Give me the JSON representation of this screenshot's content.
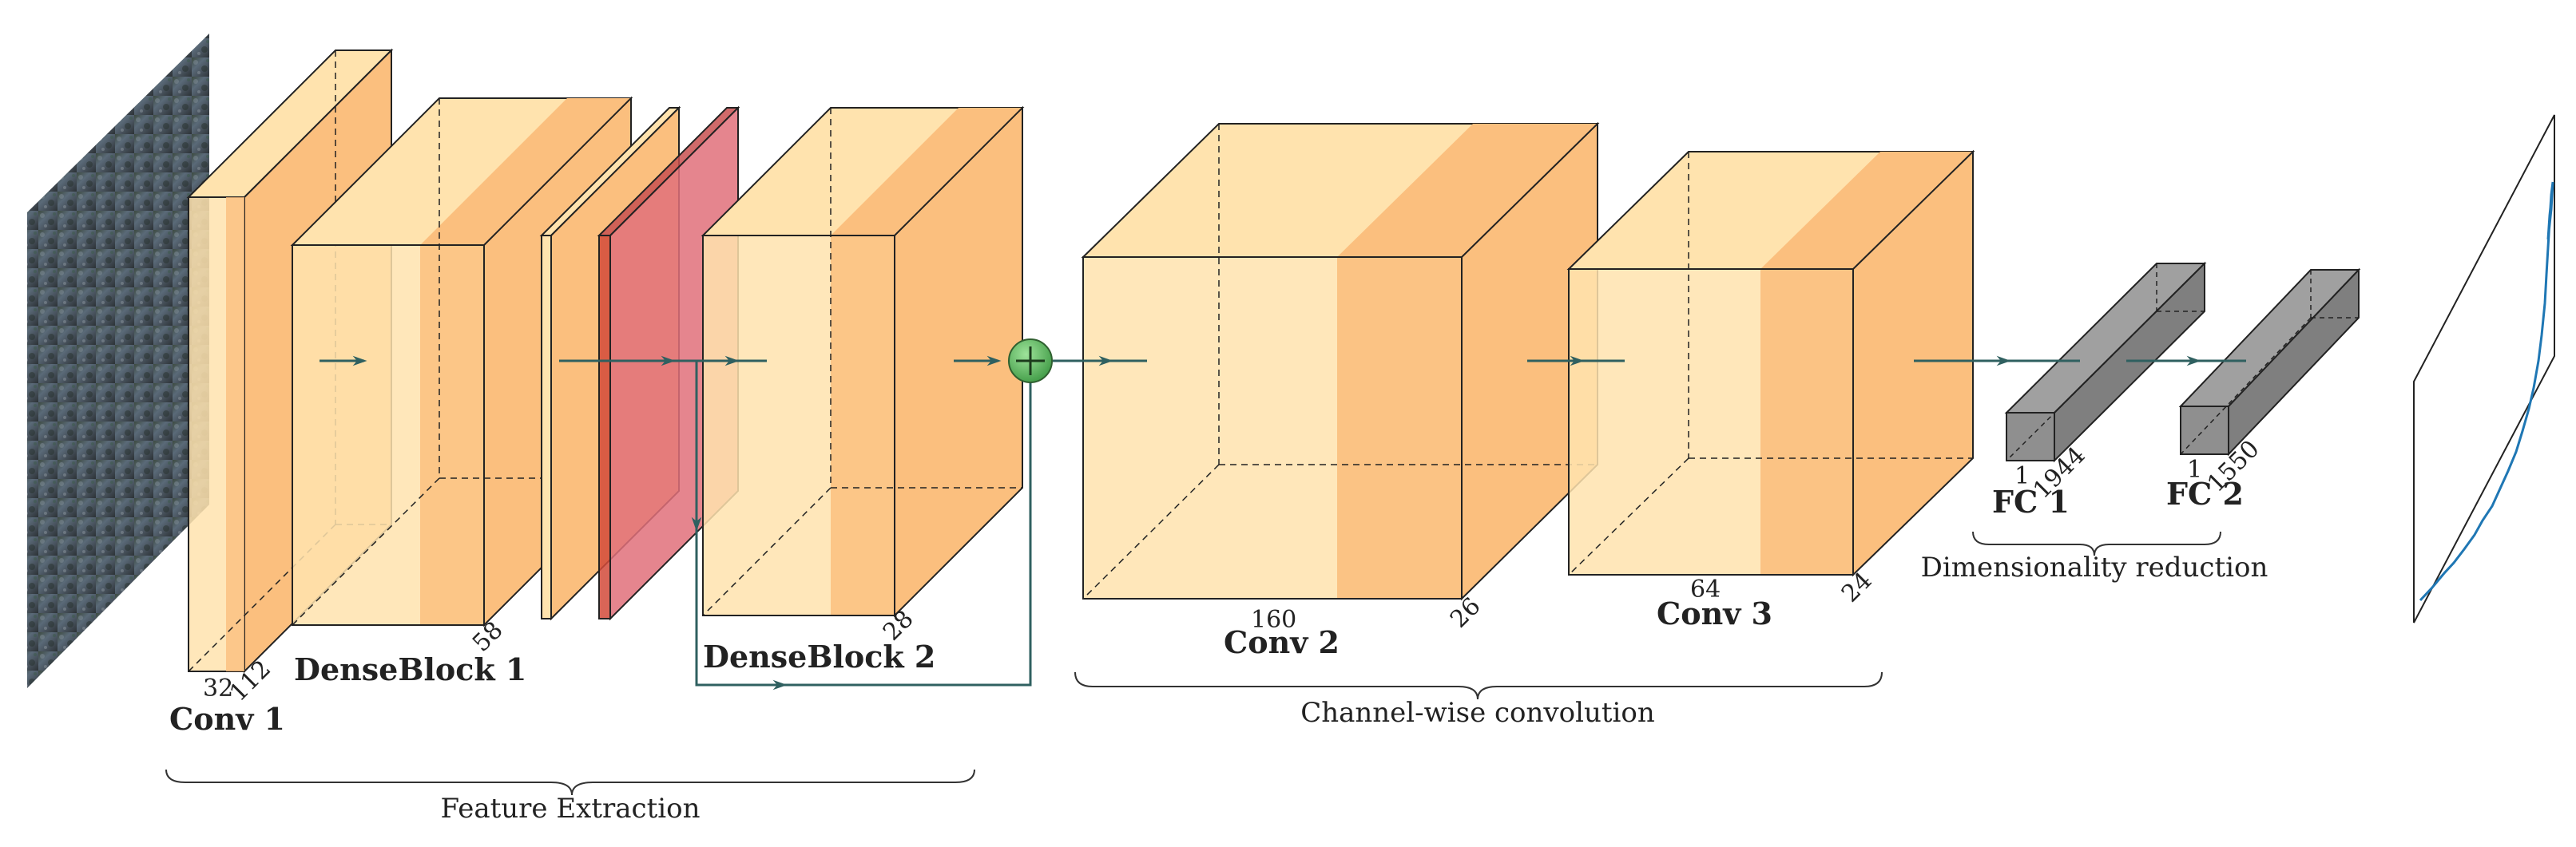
{
  "layers": {
    "conv1": {
      "name": "Conv 1",
      "depth": "32",
      "size": "112"
    },
    "denseblock1": {
      "name": "DenseBlock 1",
      "size": "58"
    },
    "denseblock2": {
      "name": "DenseBlock 2",
      "size": "28"
    },
    "conv2": {
      "name": "Conv 2",
      "depth": "160",
      "size": "26"
    },
    "conv3": {
      "name": "Conv 3",
      "depth": "64",
      "size": "24"
    },
    "fc1": {
      "name": "FC 1",
      "depth": "1",
      "size": "1944"
    },
    "fc2": {
      "name": "FC 2",
      "depth": "1",
      "size": "1550"
    }
  },
  "groups": {
    "feature_extraction": "Feature Extraction",
    "channel_wise": "Channel-wise convolution",
    "dim_reduction": "Dimensionality reduction"
  },
  "colors": {
    "light_fill": "#FFE3AE",
    "orange_fill": "#FBBF7E",
    "red_fill": "#E0707A",
    "gray_fill": "#8F8F8F",
    "arrow": "#2F6060",
    "sum_node": "#4CAF50",
    "line_plot": "#1F77B4"
  }
}
